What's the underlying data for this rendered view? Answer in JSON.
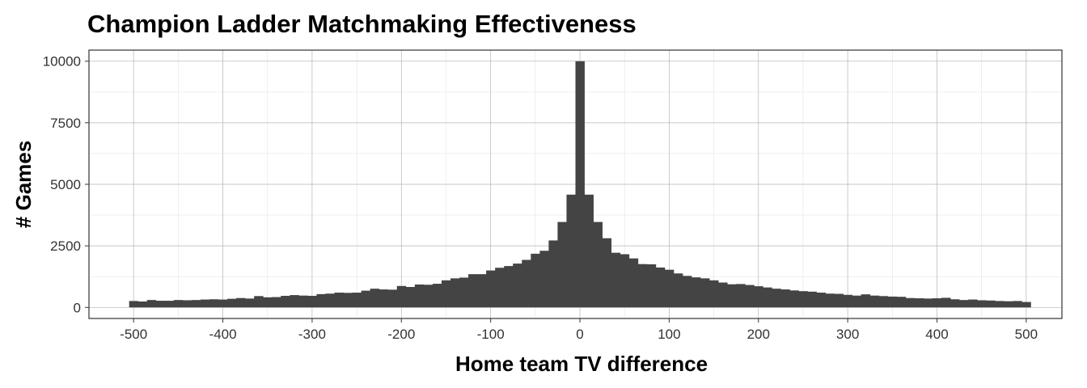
{
  "chart_data": {
    "type": "bar",
    "title": "Champion Ladder Matchmaking Effectiveness",
    "xlabel": "Home team TV difference",
    "ylabel": "# Games",
    "xlim": [
      -550,
      540
    ],
    "ylim": [
      -450,
      10450
    ],
    "x_ticks": [
      "-500",
      "-400",
      "-300",
      "-200",
      "-100",
      "0",
      "100",
      "200",
      "300",
      "400",
      "500"
    ],
    "y_ticks": [
      "0",
      "2500",
      "5000",
      "7500",
      "10000"
    ],
    "x_tick_values": [
      -500,
      -400,
      -300,
      -200,
      -100,
      0,
      100,
      200,
      300,
      400,
      500
    ],
    "y_tick_values": [
      0,
      2500,
      5000,
      7500,
      10000
    ],
    "bin_width": 10,
    "grid": true,
    "bar_color": "#444444",
    "bins_x": [
      -500,
      -490,
      -480,
      -470,
      -460,
      -450,
      -440,
      -430,
      -420,
      -410,
      -400,
      -390,
      -380,
      -370,
      -360,
      -350,
      -340,
      -330,
      -320,
      -310,
      -300,
      -290,
      -280,
      -270,
      -260,
      -250,
      -240,
      -230,
      -220,
      -210,
      -200,
      -190,
      -180,
      -170,
      -160,
      -150,
      -140,
      -130,
      -120,
      -110,
      -100,
      -90,
      -80,
      -70,
      -60,
      -50,
      -40,
      -30,
      -20,
      -10,
      0,
      10,
      20,
      30,
      40,
      50,
      60,
      70,
      80,
      90,
      100,
      110,
      120,
      130,
      140,
      150,
      160,
      170,
      180,
      190,
      200,
      210,
      220,
      230,
      240,
      250,
      260,
      270,
      280,
      290,
      300,
      310,
      320,
      330,
      340,
      350,
      360,
      370,
      380,
      390,
      400,
      410,
      420,
      430,
      440,
      450,
      460,
      470,
      480,
      490,
      500
    ],
    "values": [
      260,
      240,
      300,
      270,
      270,
      300,
      290,
      300,
      320,
      330,
      320,
      350,
      380,
      360,
      460,
      410,
      420,
      470,
      500,
      480,
      470,
      540,
      560,
      600,
      590,
      600,
      680,
      760,
      730,
      720,
      870,
      830,
      930,
      920,
      960,
      1100,
      1180,
      1210,
      1350,
      1350,
      1500,
      1610,
      1680,
      1780,
      1930,
      2180,
      2300,
      2720,
      3470,
      4580,
      10000,
      4580,
      3470,
      2810,
      2220,
      2160,
      1990,
      1760,
      1750,
      1620,
      1530,
      1380,
      1280,
      1220,
      1180,
      1100,
      1010,
      940,
      950,
      910,
      860,
      810,
      760,
      730,
      690,
      660,
      640,
      600,
      560,
      550,
      510,
      480,
      530,
      480,
      460,
      440,
      430,
      380,
      370,
      360,
      370,
      390,
      330,
      300,
      320,
      290,
      280,
      260,
      250,
      260,
      220
    ]
  }
}
